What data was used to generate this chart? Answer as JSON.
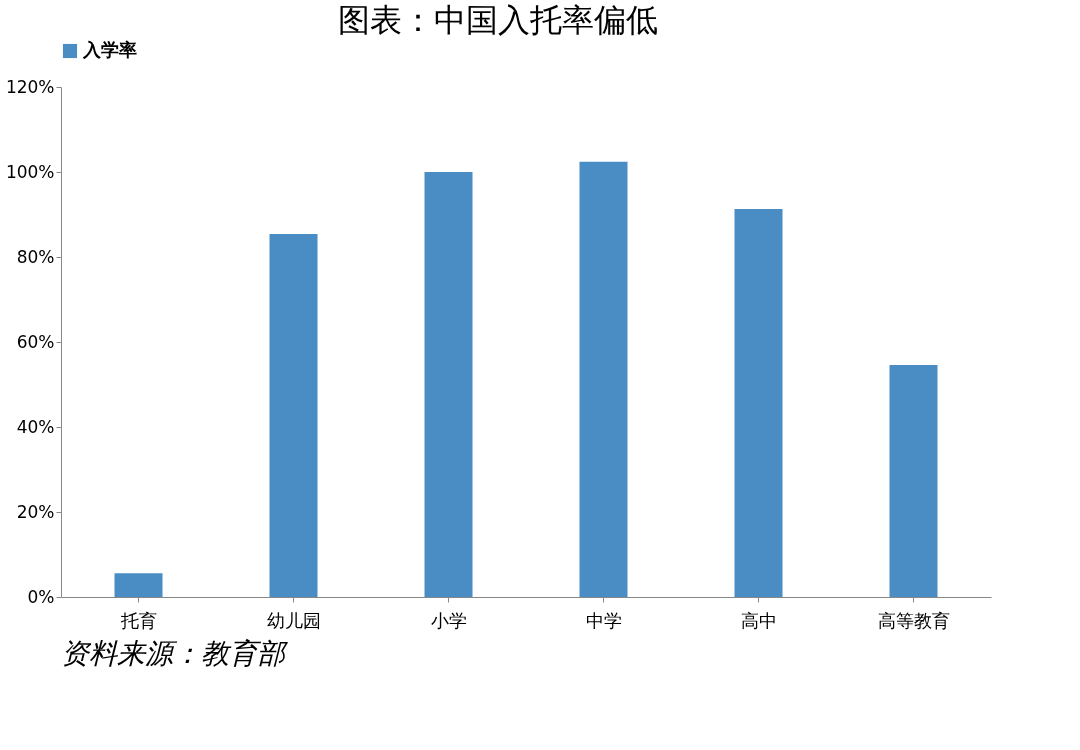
{
  "chart_data": {
    "type": "bar",
    "title": "图表：中国入托率偏低",
    "categories": [
      "托育",
      "幼儿园",
      "小学",
      "中学",
      "高中",
      "高等教育"
    ],
    "series": [
      {
        "name": "入学率",
        "color": "#4a8cc4",
        "values": [
          5.6,
          85.4,
          100,
          102.4,
          91.3,
          54.6
        ]
      }
    ],
    "ylim": [
      0,
      120
    ],
    "yticks": [
      {
        "value": 0,
        "label": "0%"
      },
      {
        "value": 20,
        "label": "20%"
      },
      {
        "value": 40,
        "label": "40%"
      },
      {
        "value": 60,
        "label": "60%"
      },
      {
        "value": 80,
        "label": "80%"
      },
      {
        "value": 100,
        "label": "100%"
      },
      {
        "value": 120,
        "label": "120%"
      }
    ],
    "grid": false,
    "legend": "top",
    "annotations": [
      "资料来源：教育部"
    ]
  }
}
